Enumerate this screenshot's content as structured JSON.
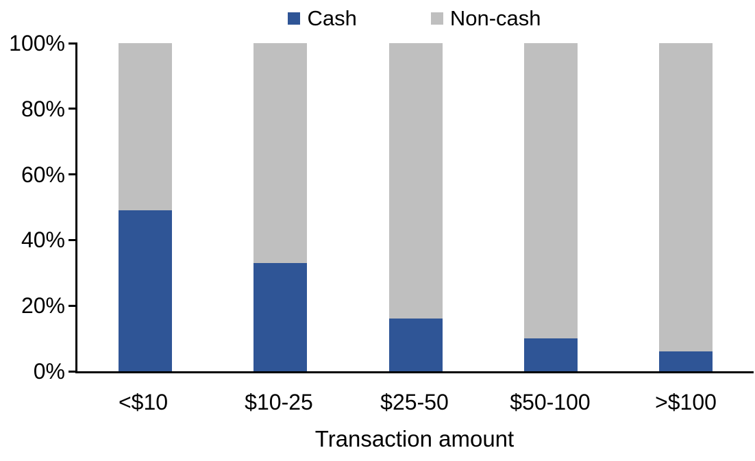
{
  "chart_data": {
    "type": "bar",
    "stacked": true,
    "percent_stacked": true,
    "title": "",
    "xlabel": "Transaction amount",
    "ylabel": "",
    "categories": [
      "<$10",
      "$10-25",
      "$25-50",
      "$50-100",
      ">$100"
    ],
    "series": [
      {
        "name": "Cash",
        "color": "#2F5596",
        "values": [
          49,
          33,
          16,
          10,
          6
        ]
      },
      {
        "name": "Non-cash",
        "color": "#BFBFBF",
        "values": [
          51,
          67,
          84,
          90,
          94
        ]
      }
    ],
    "ylim": [
      0,
      100
    ],
    "yticks": [
      "0%",
      "20%",
      "40%",
      "60%",
      "80%",
      "100%"
    ],
    "grid": false,
    "legend_position": "top",
    "axis_color": "#000000",
    "background_color": "#FFFFFF"
  }
}
